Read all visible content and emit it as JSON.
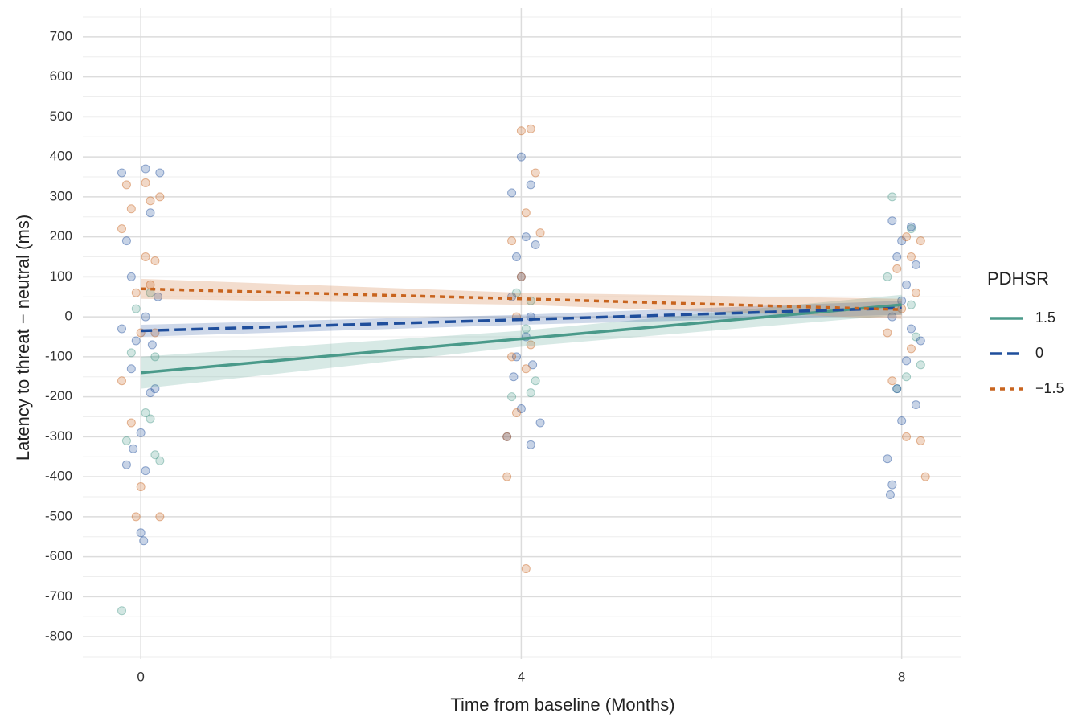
{
  "chart_data": {
    "type": "line",
    "x_label": "Time from baseline (Months)",
    "y_label": "Latency to threat − neutral (ms)",
    "legend_title": "PDHSR",
    "legend_position": "right",
    "grid": true,
    "x": [
      0,
      4,
      8
    ],
    "xlim": [
      -0.61,
      8.62
    ],
    "xticks": [
      0,
      4,
      8
    ],
    "x_minor_ticks": [
      2,
      6
    ],
    "ylim": [
      -856,
      772
    ],
    "yticks": [
      -800,
      -700,
      -600,
      -500,
      -400,
      -300,
      -200,
      -100,
      0,
      100,
      200,
      300,
      400,
      500,
      600,
      700
    ],
    "y_minor_ticks": [
      -850,
      -750,
      -650,
      -550,
      -450,
      -350,
      -250,
      -150,
      -50,
      50,
      150,
      250,
      350,
      450,
      550,
      650,
      750
    ],
    "series": [
      {
        "name": "1.5",
        "color": "#4a9a8a",
        "dash": "solid",
        "values": [
          -140,
          -55,
          30
        ],
        "lower": [
          -180,
          -75,
          5
        ],
        "upper": [
          -100,
          -35,
          55
        ],
        "points_x": [
          -0.2,
          -0.15,
          0.1,
          0.2,
          0.05,
          -0.1,
          0.15,
          -0.05,
          0.1,
          0.15,
          3.9,
          4.1,
          4.05,
          3.95,
          4.15,
          4.1,
          7.9,
          8.1,
          8.05,
          7.95,
          8.15,
          8.1,
          7.85,
          8.2
        ],
        "points_y": [
          -735,
          -310,
          -255,
          -360,
          -240,
          -90,
          -100,
          20,
          60,
          -345,
          -200,
          -190,
          -30,
          60,
          -160,
          40,
          300,
          220,
          -150,
          -180,
          -50,
          30,
          100,
          -120
        ]
      },
      {
        "name": "0",
        "color": "#1f4e9c",
        "dash": "dashed",
        "values": [
          -35,
          -7,
          22
        ],
        "lower": [
          -50,
          -20,
          5
        ],
        "upper": [
          -20,
          5,
          40
        ],
        "points_x": [
          -0.2,
          0.05,
          0.2,
          -0.15,
          0.1,
          -0.1,
          0.05,
          -0.05,
          0.15,
          0.1,
          -0.1,
          0.0,
          0.05,
          0.0,
          0.03,
          -0.15,
          -0.08,
          0.12,
          -0.2,
          0.18,
          3.9,
          4.0,
          4.1,
          4.05,
          3.95,
          4.15,
          4.0,
          3.9,
          4.1,
          4.05,
          3.95,
          4.12,
          3.92,
          4.0,
          4.1,
          4.2,
          3.85,
          7.9,
          8.0,
          8.1,
          7.95,
          8.15,
          8.05,
          8.0,
          7.9,
          8.1,
          8.2,
          8.05,
          7.95,
          8.15,
          7.85,
          7.9,
          7.88,
          8.0
        ],
        "points_y": [
          360,
          370,
          360,
          190,
          260,
          100,
          0,
          -60,
          -180,
          -190,
          -130,
          -290,
          -385,
          -540,
          -560,
          -370,
          -330,
          -70,
          -30,
          50,
          310,
          400,
          330,
          200,
          150,
          180,
          100,
          50,
          0,
          -50,
          -100,
          -120,
          -150,
          -230,
          -320,
          -265,
          -300,
          240,
          190,
          225,
          150,
          130,
          80,
          40,
          0,
          -30,
          -60,
          -110,
          -180,
          -220,
          -355,
          -420,
          -445,
          -260
        ]
      },
      {
        "name": "−1.5",
        "color": "#c8641e",
        "dash": "dotted",
        "values": [
          70,
          45,
          18
        ],
        "lower": [
          45,
          30,
          -5
        ],
        "upper": [
          95,
          60,
          45
        ],
        "points_x": [
          -0.15,
          0.05,
          0.2,
          0.1,
          -0.1,
          -0.2,
          0.05,
          0.15,
          -0.05,
          0.1,
          0.0,
          -0.2,
          -0.1,
          0.0,
          -0.05,
          0.2,
          0.15,
          4.0,
          4.1,
          4.15,
          4.05,
          3.9,
          4.2,
          4.0,
          3.95,
          4.1,
          3.9,
          4.05,
          3.95,
          3.85,
          3.85,
          4.05,
          8.2,
          8.1,
          7.95,
          8.15,
          8.0,
          7.85,
          8.1,
          8.2,
          8.05,
          8.25,
          7.9,
          8.05
        ],
        "points_y": [
          330,
          335,
          300,
          290,
          270,
          220,
          150,
          140,
          60,
          80,
          -40,
          -160,
          -265,
          -425,
          -500,
          -500,
          -40,
          465,
          470,
          360,
          260,
          190,
          210,
          100,
          0,
          -70,
          -100,
          -130,
          -240,
          -300,
          -400,
          -630,
          190,
          150,
          120,
          60,
          20,
          -40,
          -80,
          -310,
          -300,
          -400,
          -160,
          200
        ]
      }
    ]
  }
}
